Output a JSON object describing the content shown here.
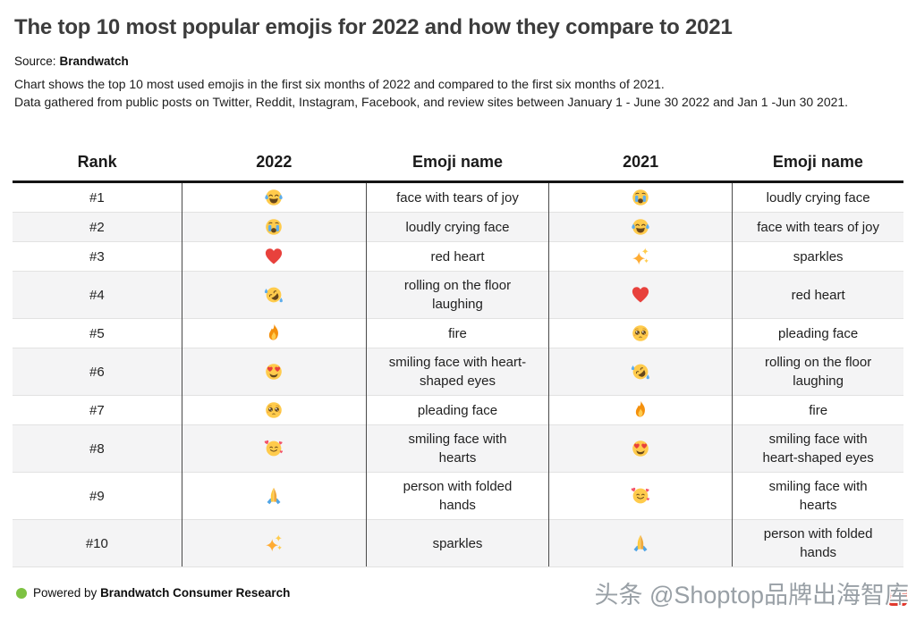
{
  "page": {
    "title": "The top 10 most popular emojis for 2022 and how they compare to 2021",
    "source_label": "Source:",
    "source_name": "Brandwatch",
    "description_line1": "Chart shows the top 10 most used emojis in the first six months of 2022 and compared to the first six months of 2021.",
    "description_line2": "Data gathered from public posts on Twitter, Reddit, Instagram, Facebook, and review sites between January 1 - June 30 2022 and Jan 1 -Jun 30 2021."
  },
  "table": {
    "columns": [
      "Rank",
      "2022",
      "Emoji name",
      "2021",
      "Emoji name"
    ],
    "rows": [
      {
        "rank": "#1",
        "emoji_2022": {
          "char": "😂",
          "icon": "joy"
        },
        "name_2022": "face with tears of joy",
        "emoji_2021": {
          "char": "😭",
          "icon": "sob"
        },
        "name_2021": "loudly crying face"
      },
      {
        "rank": "#2",
        "emoji_2022": {
          "char": "😭",
          "icon": "sob"
        },
        "name_2022": "loudly crying face",
        "emoji_2021": {
          "char": "😂",
          "icon": "joy"
        },
        "name_2021": "face with tears of joy"
      },
      {
        "rank": "#3",
        "emoji_2022": {
          "char": "❤️",
          "icon": "heart"
        },
        "name_2022": "red heart",
        "emoji_2021": {
          "char": "✨",
          "icon": "sparkles"
        },
        "name_2021": "sparkles"
      },
      {
        "rank": "#4",
        "emoji_2022": {
          "char": "🤣",
          "icon": "rofl"
        },
        "name_2022": "rolling on the floor\nlaughing",
        "emoji_2021": {
          "char": "❤️",
          "icon": "heart"
        },
        "name_2021": "red heart"
      },
      {
        "rank": "#5",
        "emoji_2022": {
          "char": "🔥",
          "icon": "fire"
        },
        "name_2022": "fire",
        "emoji_2021": {
          "char": "🥺",
          "icon": "pleading"
        },
        "name_2021": "pleading face"
      },
      {
        "rank": "#6",
        "emoji_2022": {
          "char": "😍",
          "icon": "hearteyes"
        },
        "name_2022": "smiling face with heart-\nshaped eyes",
        "emoji_2021": {
          "char": "🤣",
          "icon": "rofl"
        },
        "name_2021": "rolling on the floor\nlaughing"
      },
      {
        "rank": "#7",
        "emoji_2022": {
          "char": "🥺",
          "icon": "pleading"
        },
        "name_2022": "pleading face",
        "emoji_2021": {
          "char": "🔥",
          "icon": "fire"
        },
        "name_2021": "fire"
      },
      {
        "rank": "#8",
        "emoji_2022": {
          "char": "🥰",
          "icon": "hearts"
        },
        "name_2022": "smiling face with\nhearts",
        "emoji_2021": {
          "char": "😍",
          "icon": "hearteyes"
        },
        "name_2021": "smiling face with\nheart-shaped eyes"
      },
      {
        "rank": "#9",
        "emoji_2022": {
          "char": "🙏",
          "icon": "pray"
        },
        "name_2022": "person with folded\nhands",
        "emoji_2021": {
          "char": "🥰",
          "icon": "hearts"
        },
        "name_2021": "smiling face with\nhearts"
      },
      {
        "rank": "#10",
        "emoji_2022": {
          "char": "✨",
          "icon": "sparkles"
        },
        "name_2022": "sparkles",
        "emoji_2021": {
          "char": "🙏",
          "icon": "pray"
        },
        "name_2021": "person with folded\nhands"
      }
    ]
  },
  "footer": {
    "powered_by": "Powered by",
    "brand": "Brandwatch Consumer Research"
  },
  "watermark": {
    "text": "头条 @Shoptop品牌出海智库"
  },
  "colors": {
    "accent-green": "#7DC242",
    "stripe": "#f4f4f5",
    "divider": "#4a4a4a",
    "row-line": "#e2e2e2",
    "header-rule": "#141414",
    "watermark-gray": "#99A0A6",
    "watermark-box-red": "#E0392E"
  }
}
